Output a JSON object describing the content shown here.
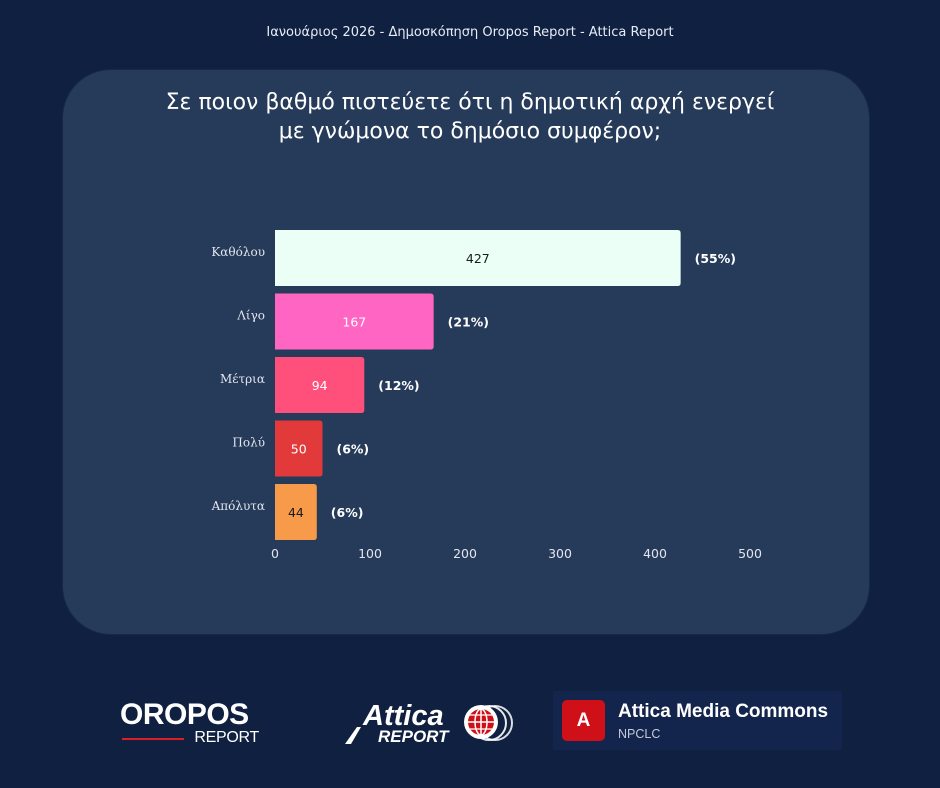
{
  "header": {
    "text": "Ιανουάριος 2026 - Δημοσκόπηση Oropos Report - Attica Report"
  },
  "question": "Σε ποιον βαθμό πιστεύετε ότι η δημοτική αρχή ενεργεί με γνώμονα το δημόσιο συμφέρον;",
  "chart_data": {
    "type": "bar",
    "orientation": "horizontal",
    "categories": [
      "Καθόλου",
      "Λίγο",
      "Μέτρια",
      "Πολύ",
      "Απόλυτα"
    ],
    "values": [
      427,
      167,
      94,
      50,
      44
    ],
    "percent_labels": [
      "(55%)",
      "(21%)",
      "(12%)",
      "(6%)",
      "(6%)"
    ],
    "colors": [
      "#ebfff6",
      "#ff66c4",
      "#ff4f7b",
      "#e23a3a",
      "#f79a4a"
    ],
    "value_label_colors": [
      "#1a1a1a",
      "#ffffff",
      "#ffffff",
      "#ffffff",
      "#1a1a1a"
    ],
    "x_ticks": [
      0,
      100,
      200,
      300,
      400,
      500
    ],
    "xlim": [
      0,
      500
    ],
    "grid": false,
    "legend": "none"
  },
  "logos": {
    "oropos": {
      "word": "OROPOS",
      "sub": "REPORT"
    },
    "attica": {
      "word": "Attica",
      "sub": "REPORT"
    },
    "amc": {
      "badge": "A",
      "title": "Attica Media Commons",
      "sub": "NPCLC"
    }
  }
}
